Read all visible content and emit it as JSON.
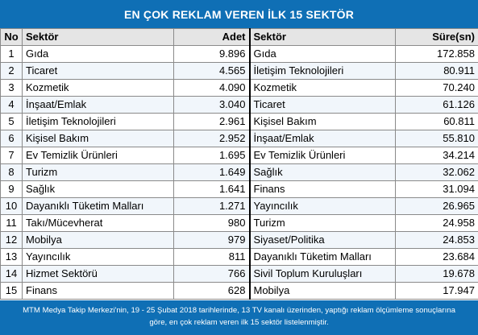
{
  "title": "EN ÇOK REKLAM VEREN İLK 15 SEKTÖR",
  "headers": {
    "no": "No",
    "sektor1": "Sektör",
    "adet": "Adet",
    "sektor2": "Sektör",
    "sure": "Süre(sn)"
  },
  "rows": [
    {
      "no": "1",
      "sektor1": "Gıda",
      "adet": "9.896",
      "sektor2": "Gıda",
      "sure": "172.858"
    },
    {
      "no": "2",
      "sektor1": "Ticaret",
      "adet": "4.565",
      "sektor2": "İletişim Teknolojileri",
      "sure": "80.911"
    },
    {
      "no": "3",
      "sektor1": "Kozmetik",
      "adet": "4.090",
      "sektor2": "Kozmetik",
      "sure": "70.240"
    },
    {
      "no": "4",
      "sektor1": "İnşaat/Emlak",
      "adet": "3.040",
      "sektor2": "Ticaret",
      "sure": "61.126"
    },
    {
      "no": "5",
      "sektor1": "İletişim Teknolojileri",
      "adet": "2.961",
      "sektor2": "Kişisel Bakım",
      "sure": "60.811"
    },
    {
      "no": "6",
      "sektor1": "Kişisel Bakım",
      "adet": "2.952",
      "sektor2": "İnşaat/Emlak",
      "sure": "55.810"
    },
    {
      "no": "7",
      "sektor1": "Ev Temizlik Ürünleri",
      "adet": "1.695",
      "sektor2": "Ev Temizlik Ürünleri",
      "sure": "34.214"
    },
    {
      "no": "8",
      "sektor1": "Turizm",
      "adet": "1.649",
      "sektor2": "Sağlık",
      "sure": "32.062"
    },
    {
      "no": "9",
      "sektor1": "Sağlık",
      "adet": "1.641",
      "sektor2": "Finans",
      "sure": "31.094"
    },
    {
      "no": "10",
      "sektor1": "Dayanıklı Tüketim Malları",
      "adet": "1.271",
      "sektor2": "Yayıncılık",
      "sure": "26.965"
    },
    {
      "no": "11",
      "sektor1": "Takı/Mücevherat",
      "adet": "980",
      "sektor2": "Turizm",
      "sure": "24.958"
    },
    {
      "no": "12",
      "sektor1": "Mobilya",
      "adet": "979",
      "sektor2": "Siyaset/Politika",
      "sure": "24.853"
    },
    {
      "no": "13",
      "sektor1": "Yayıncılık",
      "adet": "811",
      "sektor2": "Dayanıklı Tüketim Malları",
      "sure": "23.684"
    },
    {
      "no": "14",
      "sektor1": "Hizmet Sektörü",
      "adet": "766",
      "sektor2": "Sivil Toplum Kuruluşları",
      "sure": "19.678"
    },
    {
      "no": "15",
      "sektor1": "Finans",
      "adet": "628",
      "sektor2": "Mobilya",
      "sure": "17.947"
    }
  ],
  "footer": {
    "line1": "MTM Medya Takip Merkezi'nin, 19 - 25 Şubat 2018 tarihlerinde, 13 TV kanalı üzerinden,  yaptığı reklam ölçümleme sonuçlarına",
    "line2": "göre, en çok reklam veren ilk 15 sektör  listelenmiştir."
  },
  "colors": {
    "header_bar": "#0f6fb5",
    "column_header": "#e5e5e5",
    "stripe": "#f1f6fb"
  }
}
